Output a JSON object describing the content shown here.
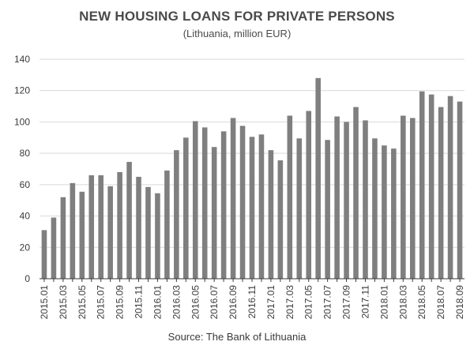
{
  "chart_data": {
    "type": "bar",
    "title": "NEW HOUSING LOANS FOR PRIVATE PERSONS",
    "subtitle": "(Lithuania, million EUR)",
    "source": "Source: The Bank of Lithuania",
    "xlabel": "",
    "ylabel": "",
    "ylim": [
      0,
      140
    ],
    "yticks": [
      0,
      20,
      40,
      60,
      80,
      100,
      120,
      140
    ],
    "grid": true,
    "bar_color": "#7f7f7f",
    "grid_color": "#d9d9d9",
    "categories": [
      "2015.01",
      "2015.02",
      "2015.03",
      "2015.04",
      "2015.05",
      "2015.06",
      "2015.07",
      "2015.08",
      "2015.09",
      "2015.10",
      "2015.11",
      "2015.12",
      "2016.01",
      "2016.02",
      "2016.03",
      "2016.04",
      "2016.05",
      "2016.06",
      "2016.07",
      "2016.08",
      "2016.09",
      "2016.10",
      "2016.11",
      "2016.12",
      "2017.01",
      "2017.02",
      "2017.03",
      "2017.04",
      "2017.05",
      "2017.06",
      "2017.07",
      "2017.08",
      "2017.09",
      "2017.10",
      "2017.11",
      "2017.12",
      "2018.01",
      "2018.02",
      "2018.03",
      "2018.04",
      "2018.05",
      "2018.06",
      "2018.07",
      "2018.08",
      "2018.09"
    ],
    "tick_labels": [
      "2015.01",
      "2015.03",
      "2015.05",
      "2015.07",
      "2015.09",
      "2015.11",
      "2016.01",
      "2016.03",
      "2016.05",
      "2016.07",
      "2016.09",
      "2016.11",
      "2017.01",
      "2017.03",
      "2017.05",
      "2017.07",
      "2017.09",
      "2017.11",
      "2018.01",
      "2018.03",
      "2018.05",
      "2018.07",
      "2018.09"
    ],
    "values": [
      31,
      39,
      52,
      61,
      55.5,
      66,
      66,
      59,
      68,
      74.5,
      65,
      58.5,
      54.5,
      69,
      82,
      90,
      100.5,
      96.5,
      84,
      94,
      102.5,
      97.5,
      90.5,
      92,
      82,
      75.5,
      104,
      89.5,
      107,
      128,
      88.5,
      103.5,
      100,
      109.5,
      101,
      89.5,
      85,
      83,
      104,
      102.5,
      119.5,
      117.5,
      109.5,
      116.5,
      113
    ]
  }
}
